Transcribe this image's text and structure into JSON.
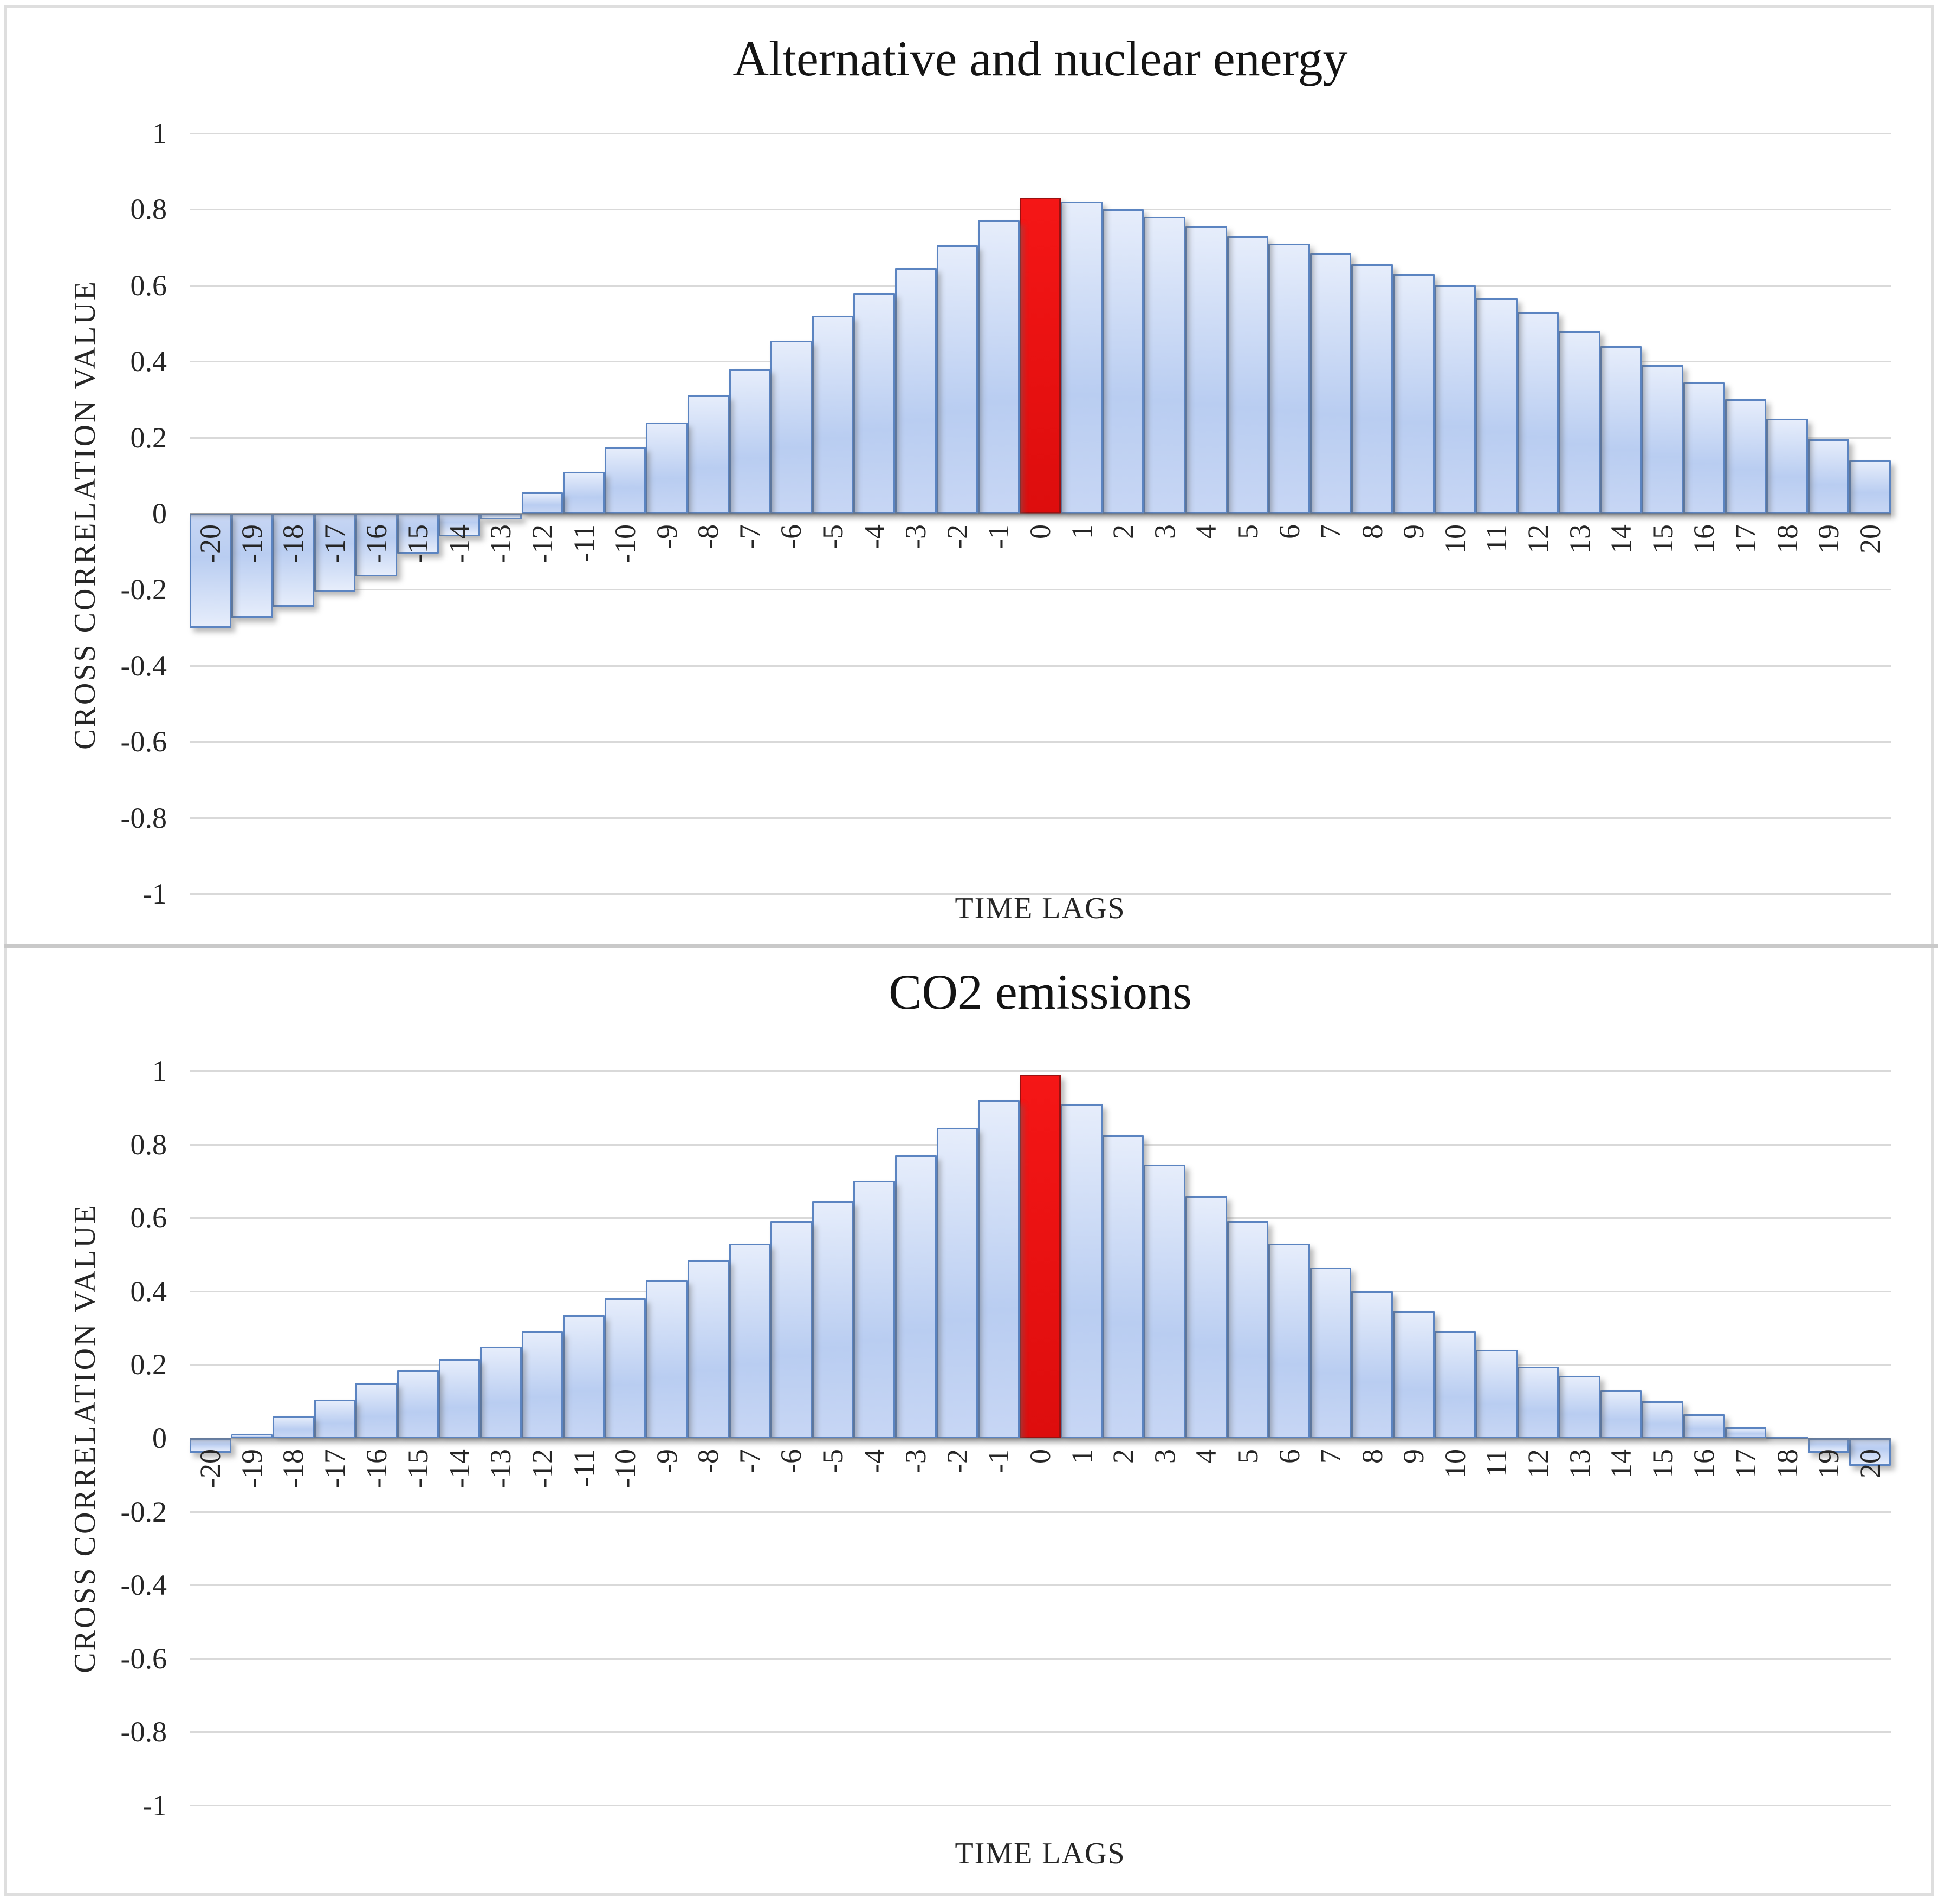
{
  "figure": {
    "background": "#ffffff",
    "frame_color": "#dedede",
    "divider_color": "#c9c9c9"
  },
  "colors": {
    "bar_fill_top": "#e6edfb",
    "bar_fill_mid": "#b9cdf1",
    "bar_fill_bottom": "#c7d6f4",
    "bar_border": "#5b84c1",
    "highlight_fill_top": "#f51616",
    "highlight_fill_bottom": "#dd0d0d",
    "highlight_border": "#9a1111",
    "gridline": "#d9d9d9",
    "axis_text": "#262626",
    "title_text": "#141414"
  },
  "chart_data": [
    {
      "type": "bar",
      "title": "Alternative and nuclear energy",
      "xlabel": "TIME LAGS",
      "ylabel": "CROSS CORRELATION VALUE",
      "ylim": [
        -1,
        1
      ],
      "ytick_step": 0.2,
      "grid": true,
      "legend": "none",
      "ytick_labels": [
        "1",
        "0.8",
        "0.6",
        "0.4",
        "0.2",
        "0",
        "-0.2",
        "-0.4",
        "-0.6",
        "-0.8",
        "-1"
      ],
      "categories": [
        -20,
        -19,
        -18,
        -17,
        -16,
        -15,
        -14,
        -13,
        -12,
        -11,
        -10,
        -9,
        -8,
        -7,
        -6,
        -5,
        -4,
        -3,
        -2,
        -1,
        0,
        1,
        2,
        3,
        4,
        5,
        6,
        7,
        8,
        9,
        10,
        11,
        12,
        13,
        14,
        15,
        16,
        17,
        18,
        19,
        20
      ],
      "values": [
        -0.3,
        -0.275,
        -0.245,
        -0.205,
        -0.165,
        -0.105,
        -0.06,
        -0.015,
        0.055,
        0.11,
        0.175,
        0.24,
        0.31,
        0.38,
        0.455,
        0.52,
        0.58,
        0.645,
        0.705,
        0.77,
        0.83,
        0.82,
        0.8,
        0.78,
        0.755,
        0.73,
        0.71,
        0.685,
        0.655,
        0.63,
        0.6,
        0.565,
        0.53,
        0.48,
        0.44,
        0.39,
        0.345,
        0.3,
        0.25,
        0.195,
        0.14
      ],
      "highlight_category": 0,
      "highlight_index": 20
    },
    {
      "type": "bar",
      "title": "CO2 emissions",
      "xlabel": "TIME LAGS",
      "ylabel": "CROSS CORRELATION VALUE",
      "ylim": [
        -1,
        1
      ],
      "ytick_step": 0.2,
      "grid": true,
      "legend": "none",
      "ytick_labels": [
        "1",
        "0.8",
        "0.6",
        "0.4",
        "0.2",
        "0",
        "-0.2",
        "-0.4",
        "-0.6",
        "-0.8",
        "-1"
      ],
      "categories": [
        -20,
        -19,
        -18,
        -17,
        -16,
        -15,
        -14,
        -13,
        -12,
        -11,
        -10,
        -9,
        -8,
        -7,
        -6,
        -5,
        -4,
        -3,
        -2,
        -1,
        0,
        1,
        2,
        3,
        4,
        5,
        6,
        7,
        8,
        9,
        10,
        11,
        12,
        13,
        14,
        15,
        16,
        17,
        18,
        19,
        20
      ],
      "values": [
        -0.04,
        0.01,
        0.06,
        0.105,
        0.15,
        0.185,
        0.215,
        0.25,
        0.29,
        0.335,
        0.38,
        0.43,
        0.485,
        0.53,
        0.59,
        0.645,
        0.7,
        0.77,
        0.845,
        0.92,
        0.99,
        0.91,
        0.825,
        0.745,
        0.66,
        0.59,
        0.53,
        0.465,
        0.4,
        0.345,
        0.29,
        0.24,
        0.195,
        0.17,
        0.13,
        0.1,
        0.065,
        0.03,
        0.005,
        -0.04,
        -0.075
      ],
      "highlight_category": 0,
      "highlight_index": 20
    }
  ]
}
